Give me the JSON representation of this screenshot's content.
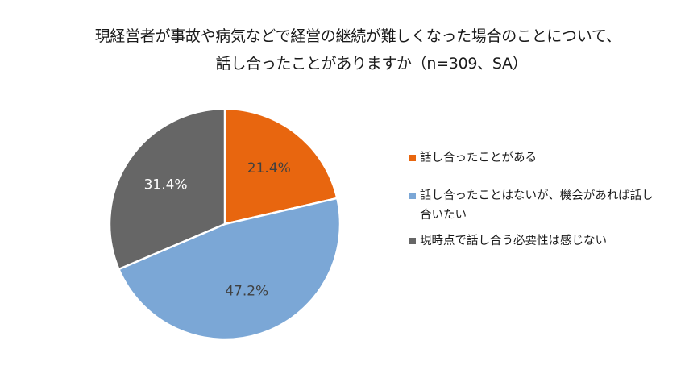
{
  "title_line1": "現経営者が事故や病気などで経営の継続が難しくなった場合のことについて、",
  "title_line2": "話し合ったことがありますか（n=309、SA）",
  "chart_data": {
    "type": "pie",
    "start_angle_deg": 0,
    "direction": "clockwise",
    "slices": [
      {
        "label": "話し合ったことがある",
        "value": 21.4,
        "display": "21.4%",
        "color": "#E8660F",
        "label_color": "#404040"
      },
      {
        "label": "話し合ったことはないが、機会があれば話し合いたい",
        "value": 47.2,
        "display": "47.2%",
        "color": "#7BA7D6",
        "label_color": "#404040"
      },
      {
        "label": "現時点で話し合う必要性は感じない",
        "value": 31.4,
        "display": "31.4%",
        "color": "#666666",
        "label_color": "#ffffff"
      }
    ],
    "legend_position": "right"
  }
}
